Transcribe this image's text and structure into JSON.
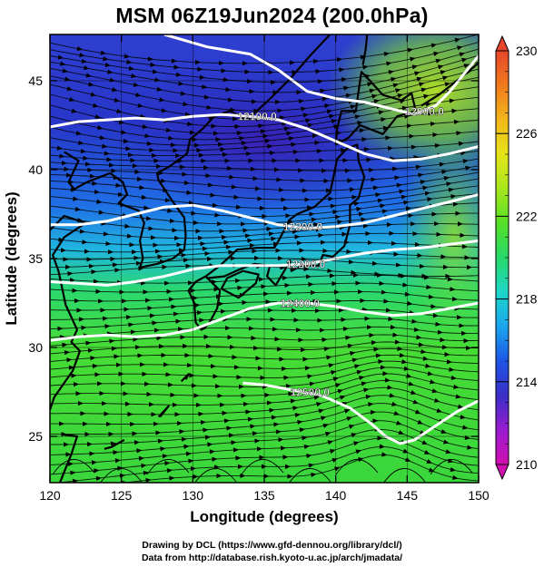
{
  "title": "MSM 06Z19Jun2024 (200.0hPa)",
  "map": {
    "x_axis": {
      "label": "Longitude (degrees)",
      "min": 120,
      "max": 150,
      "ticks": [
        120,
        125,
        130,
        135,
        140,
        145,
        150
      ]
    },
    "y_axis": {
      "label": "Latitude  (degrees)",
      "min": 22.4,
      "max": 47.6,
      "ticks": [
        25,
        30,
        35,
        40,
        45
      ]
    },
    "field": "temperature (K), shaded",
    "contours": [
      {
        "label": "12000.0",
        "lon_label": 146.2,
        "lat_label": 43.3
      },
      {
        "label": "12100.0",
        "lon_label": 134.5,
        "lat_label": 43.0
      },
      {
        "label": "12200.0",
        "lon_label": 137.7,
        "lat_label": 36.8
      },
      {
        "label": "12300.0",
        "lon_label": 137.9,
        "lat_label": 34.7
      },
      {
        "label": "12400.0",
        "lon_label": 137.5,
        "lat_label": 32.5
      },
      {
        "label": "12500.0",
        "lon_label": 138.2,
        "lat_label": 27.5
      }
    ]
  },
  "colorbar": {
    "min": 210,
    "max": 230,
    "tick_labels": [
      "230",
      "226",
      "222",
      "218",
      "214",
      "210"
    ],
    "colors": [
      "#d10fb0",
      "#9b1cd0",
      "#3a2fc8",
      "#1e55e6",
      "#1aa6ee",
      "#1fd6c8",
      "#27d96a",
      "#55e027",
      "#a8e61d",
      "#e6e41a",
      "#f2b71a",
      "#f07a1d",
      "#e8452a"
    ]
  },
  "credits": {
    "line1": "Drawing by DCL (https://www.gfd-dennou.org/library/dcl/)",
    "line2": "Data from http://database.rish.kyoto-u.ac.jp/arch/jmadata/"
  }
}
